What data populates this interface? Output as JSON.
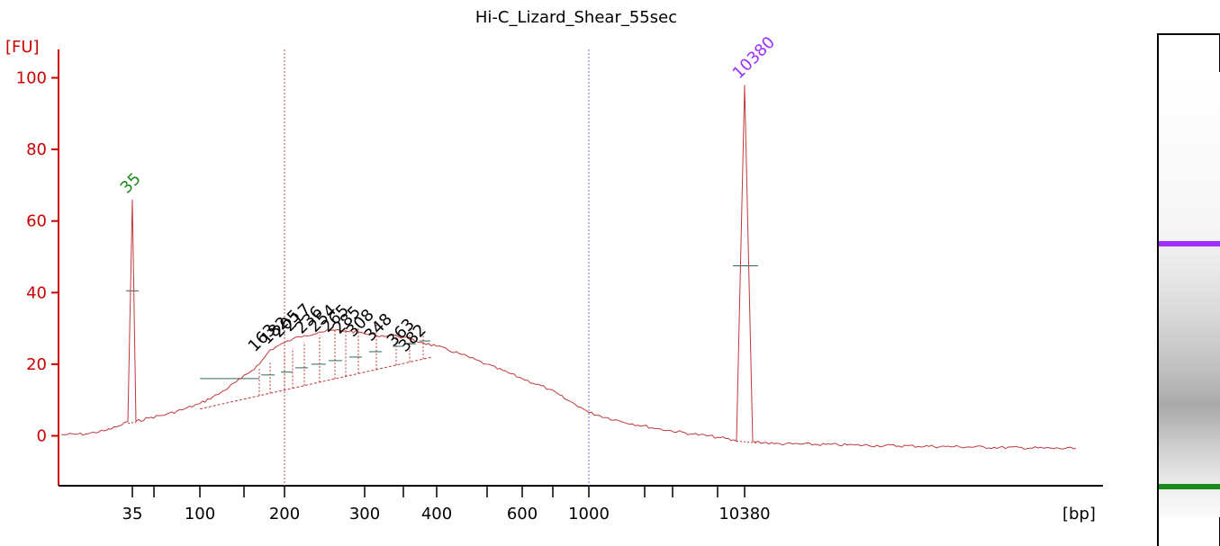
{
  "chart_data": {
    "type": "line",
    "title": "Hi-C_Lizard_Shear_55sec",
    "ylabel": "[FU]",
    "xlabel": "[bp]",
    "ylim": [
      -13,
      105
    ],
    "yticks": [
      0,
      20,
      40,
      60,
      80,
      100
    ],
    "xtick_labels": [
      "35",
      "100",
      "200",
      "300",
      "400",
      "600",
      "1000",
      "10380"
    ],
    "marker_lines": [
      "200",
      "1000"
    ],
    "colors": {
      "trace": "#c0393b",
      "axis": "#cc0000",
      "lower_marker": "#1a8a1a",
      "upper_marker": "#9b30ff",
      "smear_label": "#000000"
    },
    "peaks": [
      {
        "label": "35",
        "color": "#1a8a1a",
        "fu": 66
      },
      {
        "label": "10380",
        "color": "#9b30ff",
        "fu": 98
      }
    ],
    "smear_peaks": [
      "163",
      "182",
      "205",
      "217",
      "236",
      "254",
      "265",
      "285",
      "308",
      "348",
      "363",
      "382"
    ],
    "trace_points": [
      [
        "start",
        0.3
      ],
      [
        "pre35a",
        0.5
      ],
      [
        "pre35b",
        1.5
      ],
      [
        "pre35c",
        3.0
      ],
      [
        "35-left",
        4.0
      ],
      [
        "35",
        66
      ],
      [
        "35-right",
        4.0
      ],
      [
        "s1",
        5.0
      ],
      [
        "s2",
        6.0
      ],
      [
        "s3",
        7.5
      ],
      [
        "100",
        9.0
      ],
      [
        "s4",
        12
      ],
      [
        "s5",
        16
      ],
      [
        "163",
        20
      ],
      [
        "182",
        24
      ],
      [
        "200",
        26
      ],
      [
        "205",
        27
      ],
      [
        "217",
        28
      ],
      [
        "236",
        29
      ],
      [
        "254",
        29.5
      ],
      [
        "265",
        29.3
      ],
      [
        "285",
        29
      ],
      [
        "300",
        28.5
      ],
      [
        "308",
        28
      ],
      [
        "348",
        28
      ],
      [
        "363",
        27
      ],
      [
        "382",
        26
      ],
      [
        "400",
        25
      ],
      [
        "s6",
        23
      ],
      [
        "500",
        20
      ],
      [
        "600",
        16
      ],
      [
        "s7",
        13
      ],
      [
        "s8",
        10
      ],
      [
        "s9",
        8
      ],
      [
        "1000",
        6.5
      ],
      [
        "s10",
        4
      ],
      [
        "s11",
        2
      ],
      [
        "s12",
        0.5
      ],
      [
        "s13",
        -0.5
      ],
      [
        "10380-left",
        -1.5
      ],
      [
        "10380",
        98
      ],
      [
        "10380-right",
        -1.5
      ],
      [
        "e1",
        -2.2
      ],
      [
        "e2",
        -2.6
      ],
      [
        "e3",
        -3
      ],
      [
        "end",
        -3.6
      ]
    ]
  },
  "gel": {
    "bands": [
      {
        "name": "upper-marker-band",
        "color": "#9b30ff"
      },
      {
        "name": "lower-marker-band",
        "color": "#1a8a1a"
      }
    ]
  }
}
